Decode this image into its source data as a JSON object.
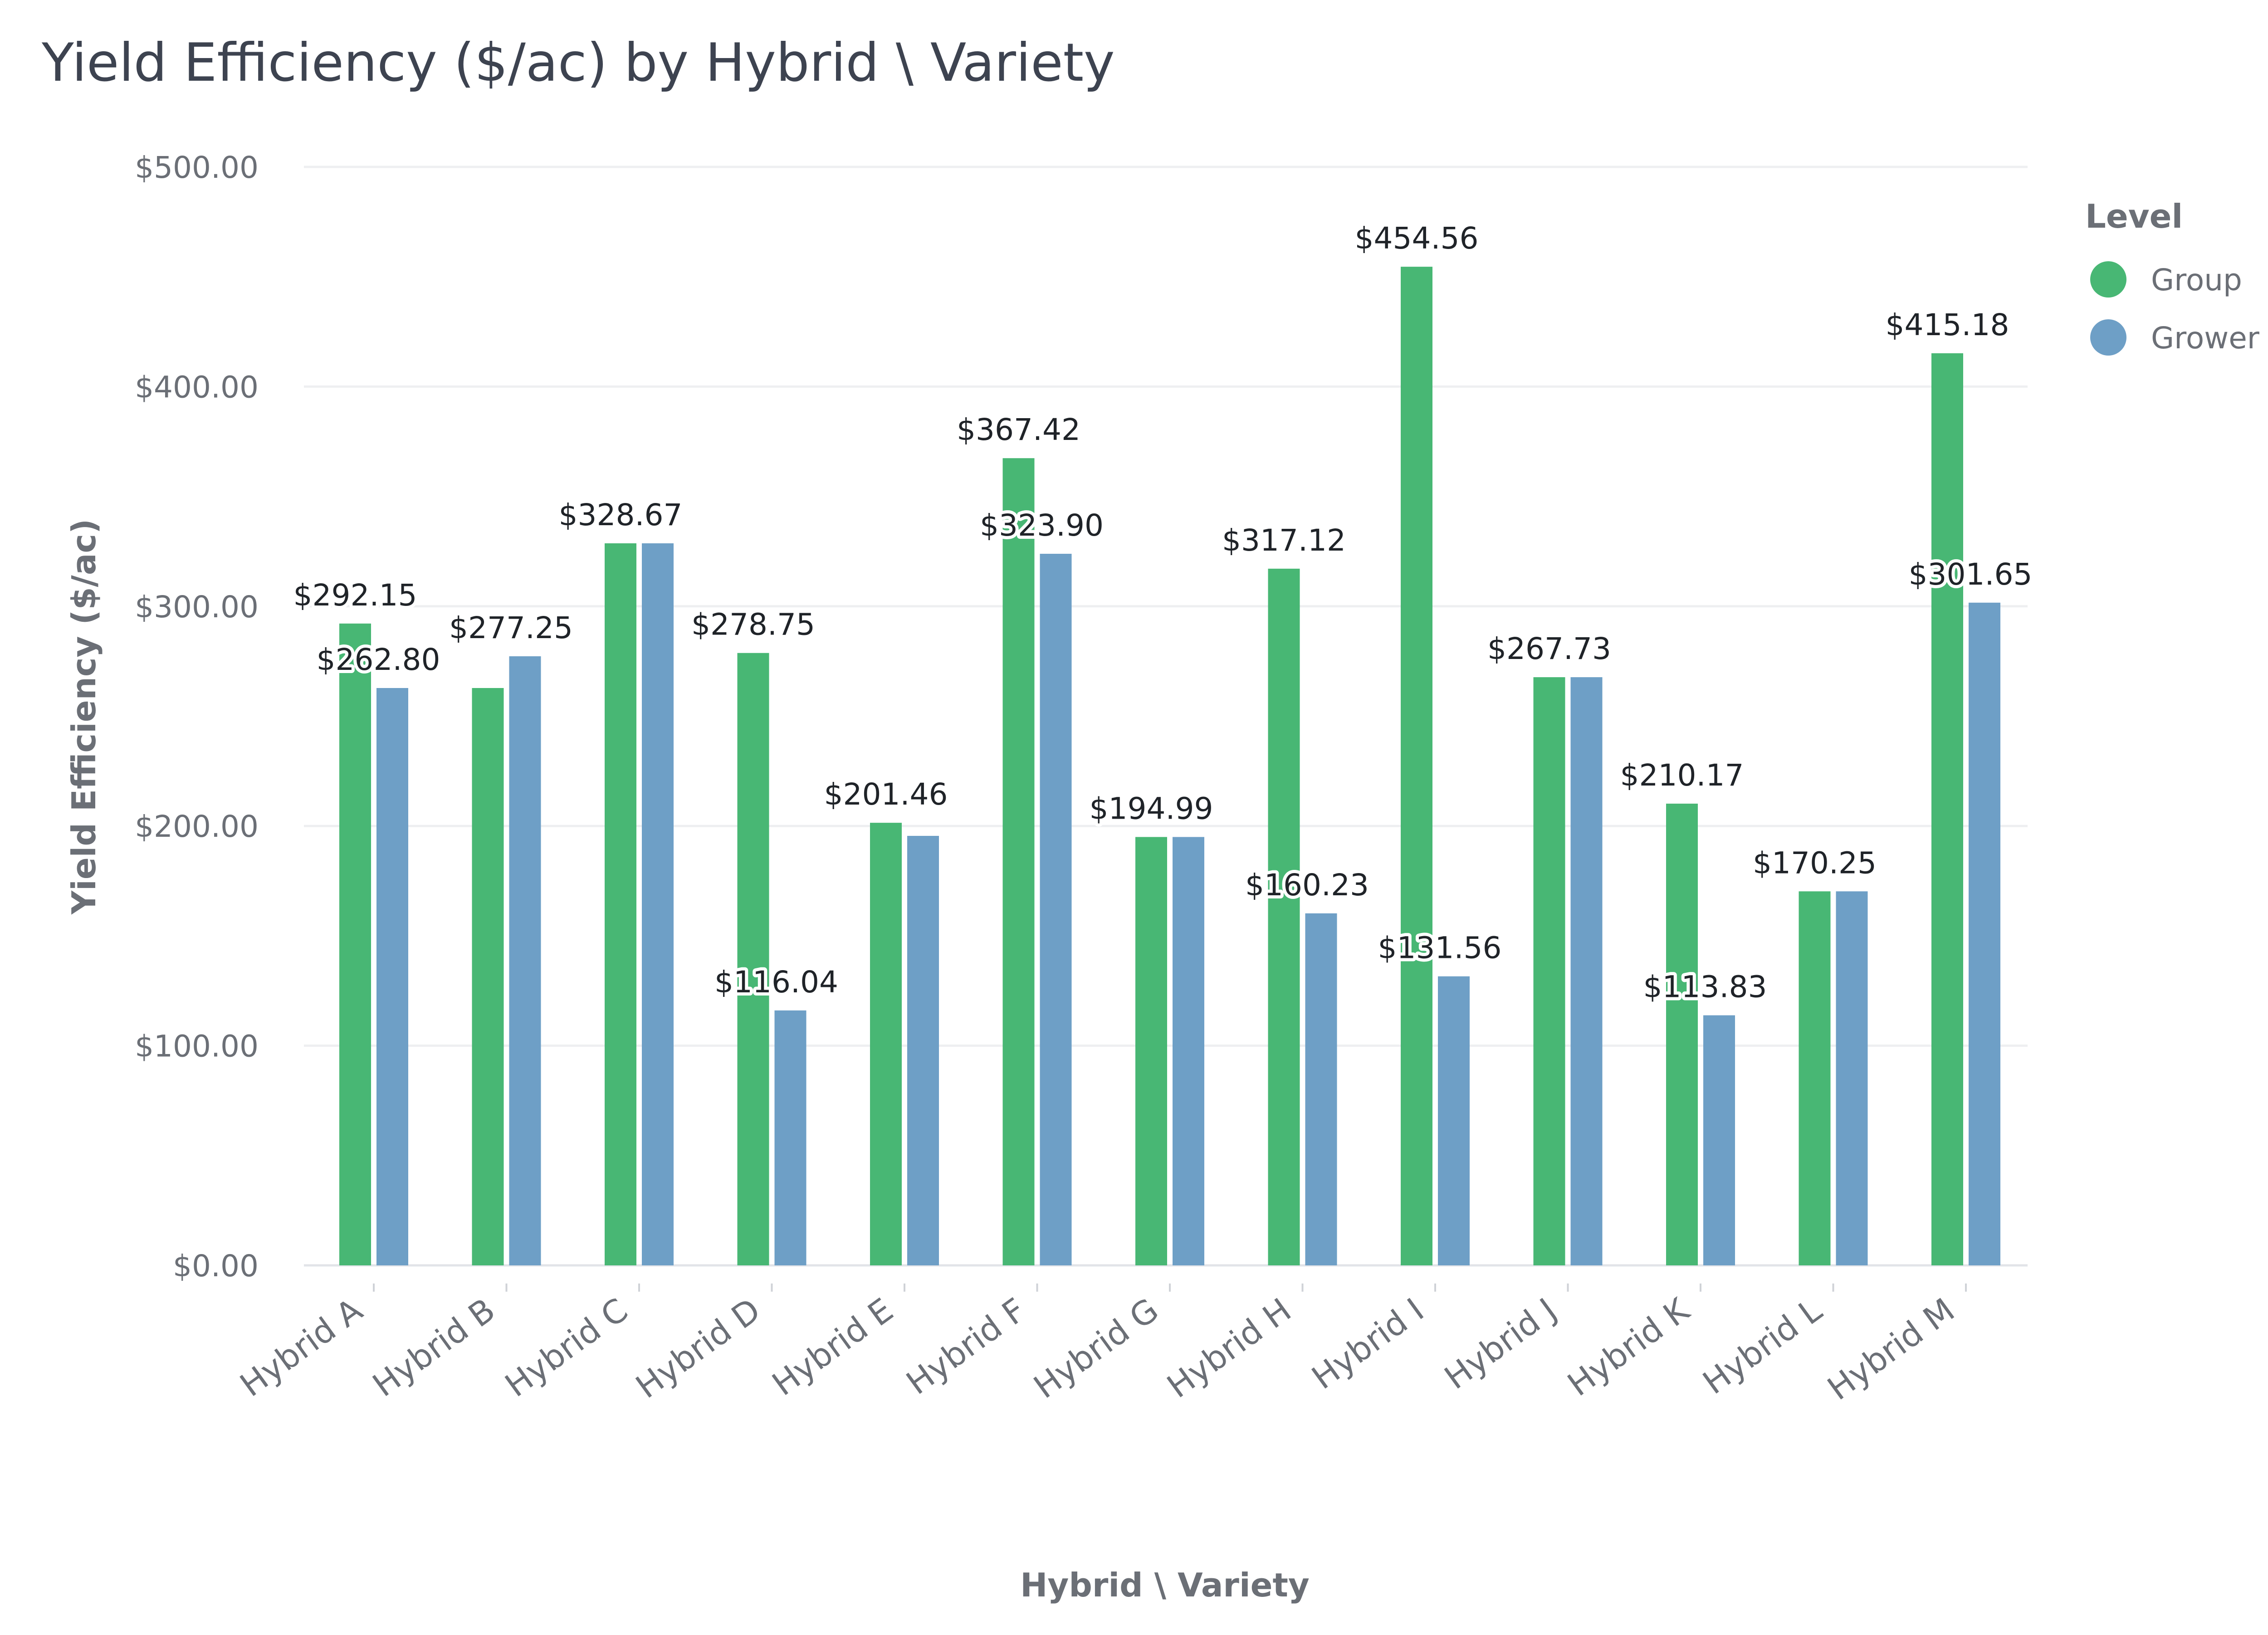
{
  "chart_data": {
    "type": "bar",
    "title": "Yield Efficiency ($/ac) by Hybrid \\ Variety",
    "xlabel": "Hybrid \\ Variety",
    "ylabel": "Yield Efficiency ($/ac)",
    "ylim": [
      0,
      500
    ],
    "yticks": [
      "$0.00",
      "$100.00",
      "$200.00",
      "$300.00",
      "$400.00",
      "$500.00"
    ],
    "grid": true,
    "legend": {
      "title": "Level",
      "placement": "right"
    },
    "categories": [
      "Hybrid A",
      "Hybrid B",
      "Hybrid C",
      "Hybrid D",
      "Hybrid E",
      "Hybrid F",
      "Hybrid G",
      "Hybrid H",
      "Hybrid I",
      "Hybrid J",
      "Hybrid K",
      "Hybrid L",
      "Hybrid M"
    ],
    "series": [
      {
        "name": "Group",
        "color": "#48b774",
        "values": [
          292.15,
          262.8,
          328.67,
          278.75,
          201.46,
          367.42,
          194.99,
          317.12,
          454.56,
          267.73,
          210.17,
          170.25,
          415.18
        ],
        "labels": [
          "$292.15",
          null,
          "$328.67",
          "$278.75",
          "$201.46",
          "$367.42",
          "$194.99",
          "$317.12",
          "$454.56",
          "$267.73",
          "$210.17",
          "$170.25",
          "$415.18"
        ]
      },
      {
        "name": "Grower",
        "color": "#6e9fc6",
        "values": [
          262.8,
          277.25,
          328.67,
          116.04,
          195.5,
          323.9,
          194.99,
          160.23,
          131.56,
          267.73,
          113.83,
          170.25,
          301.65
        ],
        "labels": [
          "$262.80",
          "$277.25",
          null,
          "$116.04",
          null,
          "$323.90",
          null,
          "$160.23",
          "$131.56",
          null,
          "$113.83",
          null,
          "$301.65"
        ]
      }
    ]
  }
}
